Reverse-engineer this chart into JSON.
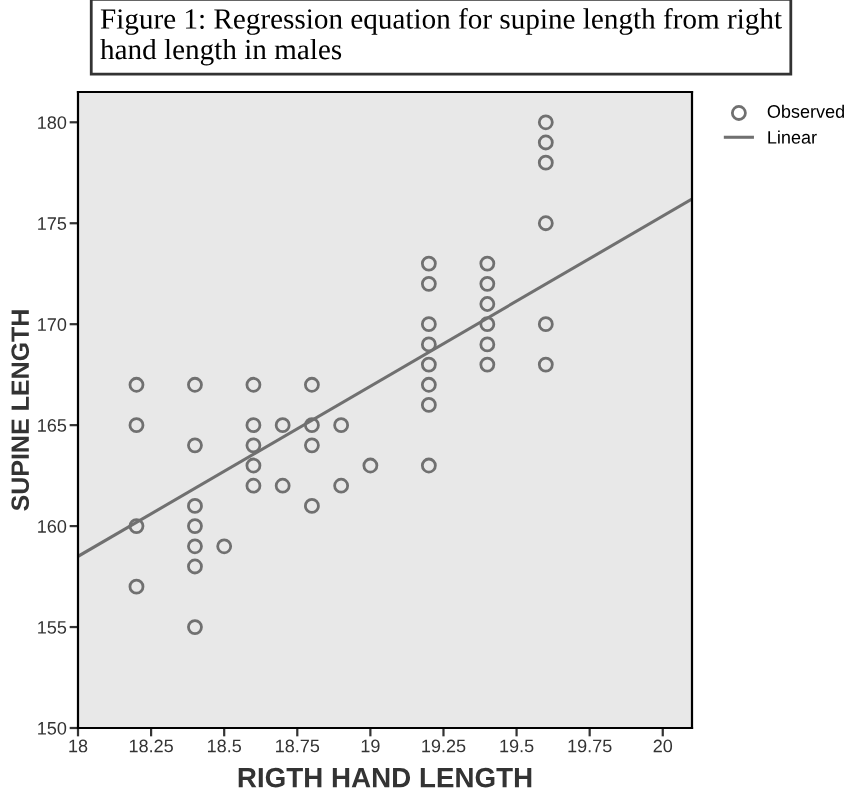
{
  "chart_data": {
    "type": "scatter",
    "title": "Figure 1: Regression equation for supine length from right hand length in males",
    "xlabel": "RIGTH HAND LENGTH",
    "ylabel": "SUPINE LENGTH",
    "xlim": [
      18,
      20.1
    ],
    "xticks": [
      18,
      18.25,
      18.5,
      18.75,
      19,
      19.25,
      19.5,
      19.75,
      20
    ],
    "ylim": [
      150,
      181.5
    ],
    "yticks": [
      150,
      155,
      160,
      165,
      170,
      175,
      180
    ],
    "grid": false,
    "legend": "top right",
    "marker": "circle",
    "series": [
      {
        "name": "Observed",
        "color": "#707070",
        "x": [
          18.2,
          18.2,
          18.2,
          18.2,
          18.4,
          18.4,
          18.4,
          18.4,
          18.4,
          18.4,
          18.4,
          18.5,
          18.6,
          18.6,
          18.6,
          18.6,
          18.6,
          18.7,
          18.7,
          18.8,
          18.8,
          18.8,
          18.8,
          18.9,
          18.9,
          19.0,
          19.2,
          19.2,
          19.2,
          19.2,
          19.2,
          19.2,
          19.2,
          19.2,
          19.4,
          19.4,
          19.4,
          19.4,
          19.4,
          19.4,
          19.6,
          19.6,
          19.6,
          19.6,
          19.6,
          19.6
        ],
        "values": [
          167,
          165,
          160,
          157,
          167,
          164,
          161,
          160,
          159,
          158,
          155,
          159,
          167,
          165,
          164,
          163,
          162,
          165,
          162,
          167,
          165,
          164,
          161,
          165,
          162,
          163,
          173,
          172,
          170,
          169,
          168,
          167,
          166,
          163,
          173,
          172,
          171,
          170,
          169,
          168,
          180,
          179,
          178,
          175,
          170,
          168
        ]
      },
      {
        "name": "Linear",
        "type": "line",
        "color": "#707070",
        "x": [
          18,
          20.1
        ],
        "values": [
          158.5,
          176.2
        ],
        "marker": "none",
        "line_style": "solid"
      }
    ]
  }
}
